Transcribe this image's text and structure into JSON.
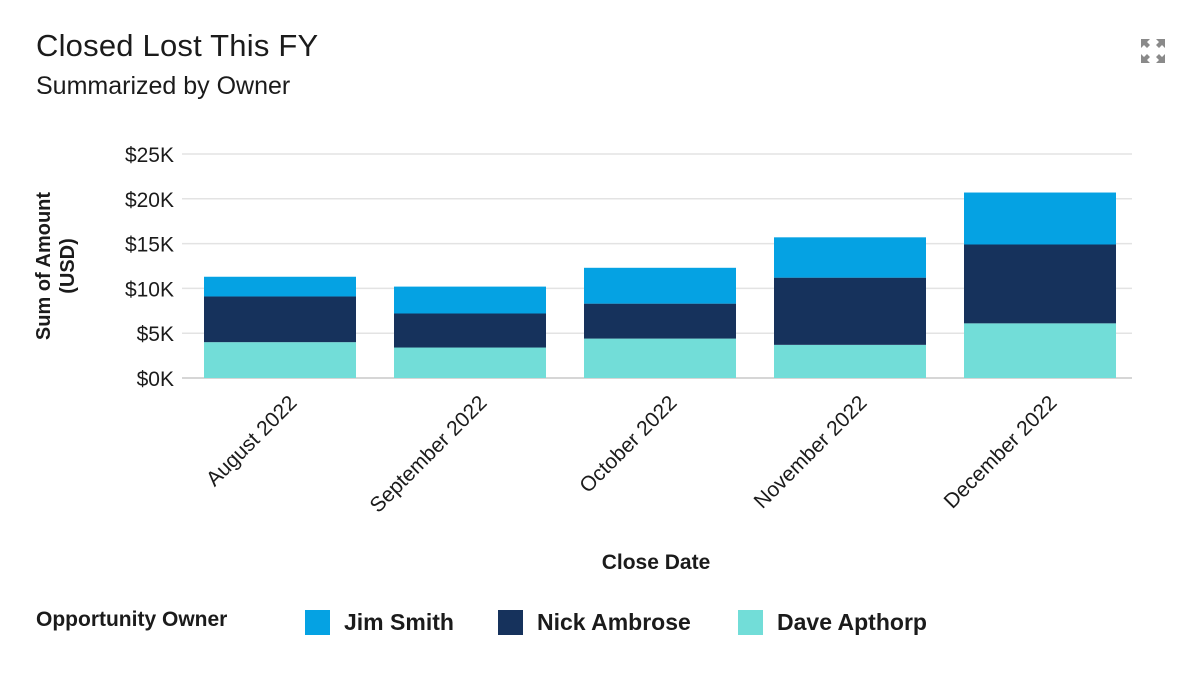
{
  "header": {
    "title": "Closed Lost This FY",
    "subtitle": "Summarized by Owner"
  },
  "icons": {
    "expand": "expand-icon"
  },
  "legend": {
    "title": "Opportunity Owner",
    "items": [
      {
        "label": "Jim Smith",
        "color": "#05a2e3"
      },
      {
        "label": "Nick Ambrose",
        "color": "#16325c"
      },
      {
        "label": "Dave Apthorp",
        "color": "#72ddd8"
      }
    ]
  },
  "chart_data": {
    "type": "bar",
    "stacked": true,
    "categories": [
      "August 2022",
      "September 2022",
      "October 2022",
      "November 2022",
      "December 2022"
    ],
    "series": [
      {
        "name": "Dave Apthorp",
        "color": "#72ddd8",
        "values": [
          4000,
          3400,
          4400,
          3700,
          6100
        ]
      },
      {
        "name": "Nick Ambrose",
        "color": "#16325c",
        "values": [
          5100,
          3800,
          3900,
          7500,
          8800
        ]
      },
      {
        "name": "Jim Smith",
        "color": "#05a2e3",
        "values": [
          2200,
          3000,
          4000,
          4500,
          5800
        ]
      }
    ],
    "ylim": [
      0,
      25000
    ],
    "yticks": [
      0,
      5000,
      10000,
      15000,
      20000,
      25000
    ],
    "ytick_labels": [
      "$0K",
      "$5K",
      "$10K",
      "$15K",
      "$20K",
      "$25K"
    ],
    "xlabel": "Close Date",
    "ylabel_lines": [
      "Sum of Amount",
      "(USD)"
    ],
    "grid": true,
    "legend_position": "bottom"
  }
}
